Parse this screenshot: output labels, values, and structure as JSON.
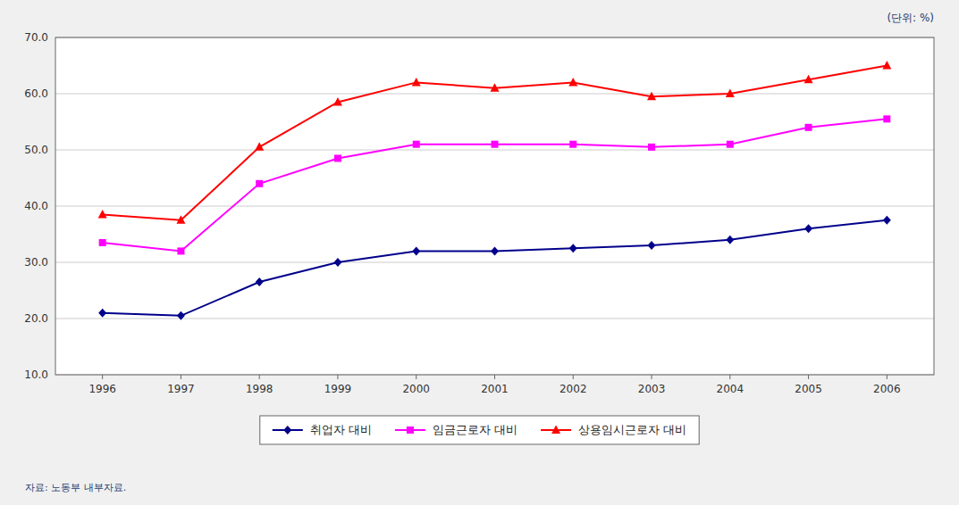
{
  "chart_data": {
    "type": "line",
    "x": [
      1996,
      1997,
      1998,
      1999,
      2000,
      2001,
      2002,
      2003,
      2004,
      2005,
      2006
    ],
    "xlim": [
      1995.4,
      2006.6
    ],
    "xticks": [
      1996,
      1997,
      1998,
      1999,
      2000,
      2001,
      2002,
      2003,
      2004,
      2005,
      2006
    ],
    "ylim": [
      10.0,
      70.0
    ],
    "yticks": [
      {
        "value": 10,
        "label": "10.0"
      },
      {
        "value": 20,
        "label": "20.0"
      },
      {
        "value": 30,
        "label": "30.0"
      },
      {
        "value": 40,
        "label": "40.0"
      },
      {
        "value": 50,
        "label": "50.0"
      },
      {
        "value": 60,
        "label": "60.0"
      },
      {
        "value": 70,
        "label": "70.0"
      }
    ],
    "grid": true,
    "legend": "bottom",
    "annotations": [
      "(단위: %)",
      "자료: 노동부 내부자료."
    ],
    "series": [
      {
        "name": "취업자 대비",
        "color": "#00008B",
        "marker": "diamond",
        "values": [
          21.0,
          20.5,
          26.5,
          30.0,
          32.0,
          32.0,
          32.5,
          33.0,
          34.0,
          36.0,
          37.5
        ]
      },
      {
        "name": "임금근로자 대비",
        "color": "#FF00FF",
        "marker": "square",
        "values": [
          33.5,
          32.0,
          44.0,
          48.5,
          51.0,
          51.0,
          51.0,
          50.5,
          51.0,
          54.0,
          55.5
        ]
      },
      {
        "name": "상용임시근로자 대비",
        "color": "#FF0000",
        "marker": "triangle",
        "values": [
          38.5,
          37.5,
          50.5,
          58.5,
          62.0,
          61.0,
          62.0,
          59.5,
          60.0,
          62.5,
          65.0
        ]
      }
    ]
  }
}
